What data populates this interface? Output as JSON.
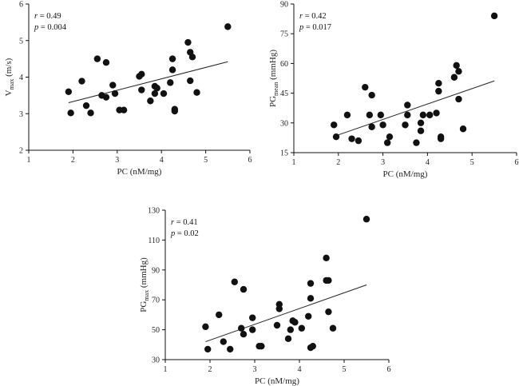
{
  "chart_data": [
    {
      "type": "scatter",
      "id": "vmax",
      "xlabel": "PC (nM/mg)",
      "ylabel": {
        "base": "V",
        "sub": "max",
        "unit": " (m/s)"
      },
      "xlim": [
        1,
        6
      ],
      "ylim": [
        2,
        6
      ],
      "xticks": [
        1,
        2,
        3,
        4,
        5,
        6
      ],
      "yticks": [
        2,
        3,
        4,
        5,
        6
      ],
      "stat": {
        "r_label": "r",
        "r_value": " = 0.49",
        "p_label": "p",
        "p_value": " = 0.004"
      },
      "fit": {
        "x": [
          1.9,
          5.5
        ],
        "y": [
          3.3,
          4.42
        ]
      },
      "x": [
        1.9,
        1.95,
        2.2,
        2.3,
        2.4,
        2.55,
        2.65,
        2.75,
        2.75,
        2.9,
        2.95,
        3.05,
        3.15,
        3.5,
        3.55,
        3.55,
        3.75,
        3.85,
        3.85,
        3.9,
        4.05,
        4.2,
        4.25,
        4.25,
        4.3,
        4.3,
        4.6,
        4.65,
        4.65,
        4.7,
        4.8,
        5.5
      ],
      "y": [
        3.6,
        3.02,
        3.89,
        3.22,
        3.02,
        4.5,
        3.5,
        4.4,
        3.45,
        3.78,
        3.55,
        3.1,
        3.1,
        4.02,
        4.08,
        3.65,
        3.35,
        3.55,
        3.75,
        3.7,
        3.55,
        3.85,
        4.5,
        4.2,
        3.07,
        3.12,
        4.95,
        4.68,
        3.9,
        4.55,
        3.58,
        5.38
      ]
    },
    {
      "type": "scatter",
      "id": "pgmean",
      "xlabel": "PC (nM/mg)",
      "ylabel": {
        "base": "PG",
        "sub": "mean",
        "unit": " (mmHg)"
      },
      "xlim": [
        1,
        6
      ],
      "ylim": [
        15,
        90
      ],
      "xticks": [
        1,
        2,
        3,
        4,
        5,
        6
      ],
      "yticks": [
        15,
        30,
        45,
        60,
        75,
        90
      ],
      "stat": {
        "r_label": "r",
        "r_value": " = 0.42",
        "p_label": "p",
        "p_value": " = 0.017"
      },
      "fit": {
        "x": [
          1.9,
          5.5
        ],
        "y": [
          23.2,
          51.2
        ]
      },
      "x": [
        1.9,
        1.95,
        2.2,
        2.3,
        2.45,
        2.6,
        2.7,
        2.75,
        2.75,
        2.95,
        3.0,
        3.1,
        3.15,
        3.5,
        3.55,
        3.55,
        3.75,
        3.85,
        3.85,
        3.9,
        4.05,
        4.2,
        4.25,
        4.25,
        4.3,
        4.3,
        4.6,
        4.65,
        4.7,
        4.7,
        4.8,
        5.5
      ],
      "y": [
        29,
        23,
        34,
        22,
        21,
        48,
        34,
        44,
        28,
        34,
        29,
        20,
        23,
        29,
        39,
        34,
        20,
        26,
        30,
        34,
        34,
        35,
        50,
        46,
        23,
        22,
        53,
        59,
        42,
        56,
        27,
        84
      ]
    },
    {
      "type": "scatter",
      "id": "pgmax",
      "xlabel": "PC (nM/mg)",
      "ylabel": {
        "base": "PG",
        "sub": "max",
        "unit": " (mmHg)"
      },
      "xlim": [
        1,
        6
      ],
      "ylim": [
        30,
        130
      ],
      "xticks": [
        1,
        2,
        3,
        4,
        5,
        6
      ],
      "yticks": [
        30,
        50,
        70,
        90,
        110,
        130
      ],
      "stat": {
        "r_label": "r",
        "r_value": " = 0.41",
        "p_label": "p",
        "p_value": " = 0.02"
      },
      "fit": {
        "x": [
          1.9,
          5.5
        ],
        "y": [
          42,
          80
        ]
      },
      "x": [
        1.9,
        1.95,
        2.2,
        2.3,
        2.45,
        2.55,
        2.7,
        2.75,
        2.75,
        2.95,
        2.95,
        3.1,
        3.15,
        3.5,
        3.55,
        3.55,
        3.75,
        3.8,
        3.85,
        3.9,
        4.05,
        4.2,
        4.25,
        4.25,
        4.25,
        4.3,
        4.6,
        4.6,
        4.65,
        4.65,
        4.75,
        5.5
      ],
      "y": [
        52,
        37,
        60,
        42,
        37,
        82,
        51,
        77,
        47,
        58,
        50,
        39,
        39,
        53,
        67,
        64,
        44,
        50,
        56,
        55,
        51,
        59,
        81,
        71,
        38,
        39,
        98,
        83,
        62,
        83,
        51,
        124
      ]
    }
  ]
}
